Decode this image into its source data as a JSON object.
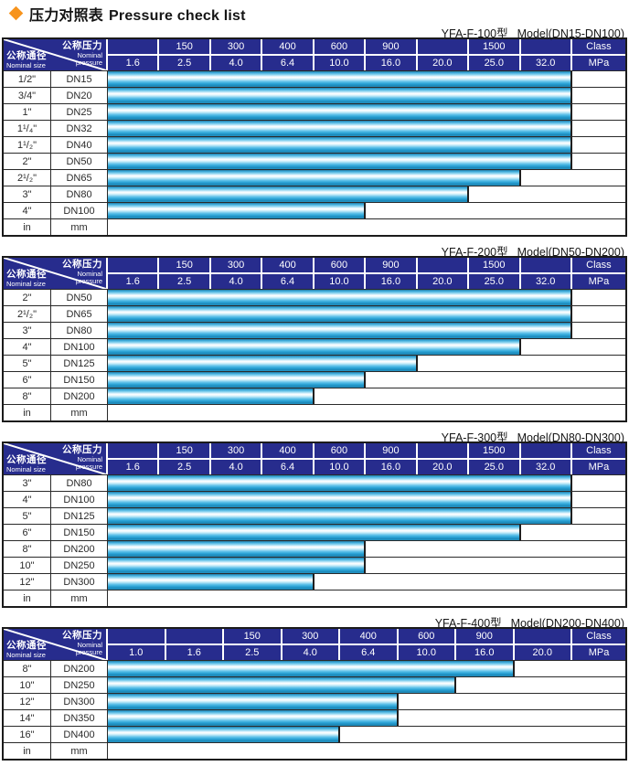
{
  "page": {
    "title_zh": "压力对照表",
    "title_en": "Pressure check list"
  },
  "colors": {
    "header_navy": "#272c8d",
    "bar_cyan": "#2aa3d6",
    "diamond_orange": "#f7941d",
    "grid_dark": "#2a2a2a"
  },
  "diagonal_header": {
    "pressure_zh": "公称压力",
    "pressure_en1": "Nominal",
    "pressure_en2": "pressure",
    "size_zh": "公称通径",
    "size_en": "Nominal size"
  },
  "tables": [
    {
      "model": "YFA-F-100型",
      "range": "Model(DN15-DN100)",
      "class_row": [
        "",
        "150",
        "300",
        "400",
        "600",
        "900",
        "",
        "1500",
        "",
        "Class"
      ],
      "mpa_row": [
        "1.6",
        "2.5",
        "4.0",
        "6.4",
        "10.0",
        "16.0",
        "20.0",
        "25.0",
        "32.0",
        "MPa"
      ],
      "rows": [
        {
          "size": "1/2\"",
          "dn": "DN15",
          "bar": 9
        },
        {
          "size": "3/4\"",
          "dn": "DN20",
          "bar": 9
        },
        {
          "size": "1\"",
          "dn": "DN25",
          "bar": 9
        },
        {
          "size": "1¹/₄\"",
          "dn": "DN32",
          "bar": 9
        },
        {
          "size": "1¹/₂\"",
          "dn": "DN40",
          "bar": 9
        },
        {
          "size": "2\"",
          "dn": "DN50",
          "bar": 9
        },
        {
          "size": "2¹/₂\"",
          "dn": "DN65",
          "bar": 8
        },
        {
          "size": "3\"",
          "dn": "DN80",
          "bar": 7
        },
        {
          "size": "4\"",
          "dn": "DN100",
          "bar": 5
        },
        {
          "size": "in",
          "dn": "mm",
          "bar": 0
        }
      ]
    },
    {
      "model": "YFA-F-200型",
      "range": "Model(DN50-DN200)",
      "class_row": [
        "",
        "150",
        "300",
        "400",
        "600",
        "900",
        "",
        "1500",
        "",
        "Class"
      ],
      "mpa_row": [
        "1.6",
        "2.5",
        "4.0",
        "6.4",
        "10.0",
        "16.0",
        "20.0",
        "25.0",
        "32.0",
        "MPa"
      ],
      "rows": [
        {
          "size": "2\"",
          "dn": "DN50",
          "bar": 9
        },
        {
          "size": "2¹/₂\"",
          "dn": "DN65",
          "bar": 9
        },
        {
          "size": "3\"",
          "dn": "DN80",
          "bar": 9
        },
        {
          "size": "4\"",
          "dn": "DN100",
          "bar": 8
        },
        {
          "size": "5\"",
          "dn": "DN125",
          "bar": 6
        },
        {
          "size": "6\"",
          "dn": "DN150",
          "bar": 5
        },
        {
          "size": "8\"",
          "dn": "DN200",
          "bar": 4
        },
        {
          "size": "in",
          "dn": "mm",
          "bar": 0
        }
      ]
    },
    {
      "model": "YFA-F-300型",
      "range": "Model(DN80-DN300)",
      "class_row": [
        "",
        "150",
        "300",
        "400",
        "600",
        "900",
        "",
        "1500",
        "",
        "Class"
      ],
      "mpa_row": [
        "1.6",
        "2.5",
        "4.0",
        "6.4",
        "10.0",
        "16.0",
        "20.0",
        "25.0",
        "32.0",
        "MPa"
      ],
      "rows": [
        {
          "size": "3\"",
          "dn": "DN80",
          "bar": 9
        },
        {
          "size": "4\"",
          "dn": "DN100",
          "bar": 9
        },
        {
          "size": "5\"",
          "dn": "DN125",
          "bar": 9
        },
        {
          "size": "6\"",
          "dn": "DN150",
          "bar": 8
        },
        {
          "size": "8\"",
          "dn": "DN200",
          "bar": 5
        },
        {
          "size": "10\"",
          "dn": "DN250",
          "bar": 5
        },
        {
          "size": "12\"",
          "dn": "DN300",
          "bar": 4
        },
        {
          "size": "in",
          "dn": "mm",
          "bar": 0
        }
      ]
    },
    {
      "model": "YFA-F-400型",
      "range": "Model(DN200-DN400)",
      "class_row": [
        "",
        "",
        "150",
        "300",
        "400",
        "600",
        "900",
        "",
        "Class"
      ],
      "mpa_row": [
        "1.0",
        "1.6",
        "2.5",
        "4.0",
        "6.4",
        "10.0",
        "16.0",
        "20.0",
        "MPa"
      ],
      "rows": [
        {
          "size": "8\"",
          "dn": "DN200",
          "bar": 7
        },
        {
          "size": "10\"",
          "dn": "DN250",
          "bar": 6
        },
        {
          "size": "12\"",
          "dn": "DN300",
          "bar": 5
        },
        {
          "size": "14\"",
          "dn": "DN350",
          "bar": 5
        },
        {
          "size": "16\"",
          "dn": "DN400",
          "bar": 4
        },
        {
          "size": "in",
          "dn": "mm",
          "bar": 0
        }
      ]
    }
  ]
}
